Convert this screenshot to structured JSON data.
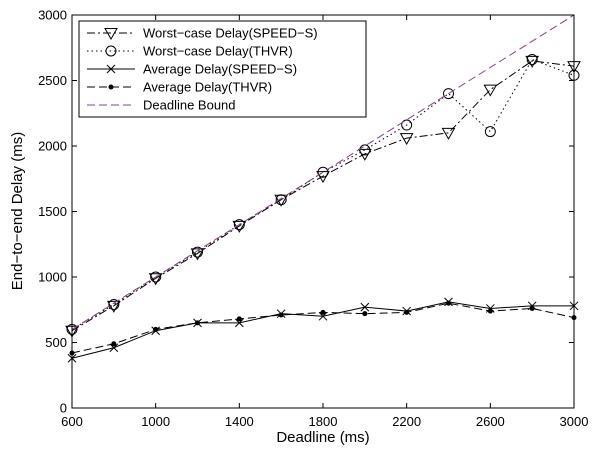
{
  "chart_data": {
    "type": "line",
    "title": "",
    "xlabel": "Deadline (ms)",
    "ylabel": "End−to−end Delay (ms)",
    "xlim": [
      600,
      3000
    ],
    "ylim": [
      0,
      3000
    ],
    "xticks": [
      "600",
      "1000",
      "1400",
      "1800",
      "2200",
      "2600",
      "3000"
    ],
    "yticks": [
      "0",
      "500",
      "1000",
      "1500",
      "2000",
      "2500",
      "3000"
    ],
    "legend_position": "top-left",
    "grid": false,
    "x": [
      600,
      800,
      1000,
      1200,
      1400,
      1600,
      1800,
      2000,
      2200,
      2400,
      2600,
      2800,
      3000
    ],
    "series": [
      {
        "name": "Worst−case Delay(SPEED−S)",
        "style": "dashdot",
        "marker": "triangle-down",
        "color": "#000000",
        "values": [
          590,
          780,
          990,
          1180,
          1390,
          1590,
          1770,
          1940,
          2060,
          2100,
          2430,
          2650,
          2610
        ]
      },
      {
        "name": "Worst−case Delay(THVR)",
        "style": "dotted",
        "marker": "circle",
        "color": "#000000",
        "values": [
          600,
          790,
          1000,
          1190,
          1400,
          1590,
          1800,
          1970,
          2160,
          2400,
          2110,
          2660,
          2540
        ]
      },
      {
        "name": "Average Delay(SPEED−S)",
        "style": "solid",
        "marker": "x",
        "color": "#000000",
        "values": [
          380,
          460,
          590,
          650,
          650,
          720,
          700,
          770,
          740,
          810,
          760,
          780,
          780
        ]
      },
      {
        "name": "Average Delay(THVR)",
        "style": "dashed",
        "marker": "dot",
        "color": "#000000",
        "values": [
          420,
          490,
          600,
          650,
          680,
          710,
          730,
          720,
          730,
          800,
          740,
          760,
          690
        ]
      },
      {
        "name": "Deadline Bound",
        "style": "dashed",
        "marker": "none",
        "color": "#8a3f8c",
        "values": [
          600,
          800,
          1000,
          1200,
          1400,
          1600,
          1800,
          2000,
          2200,
          2400,
          2600,
          2800,
          3000
        ]
      }
    ]
  }
}
